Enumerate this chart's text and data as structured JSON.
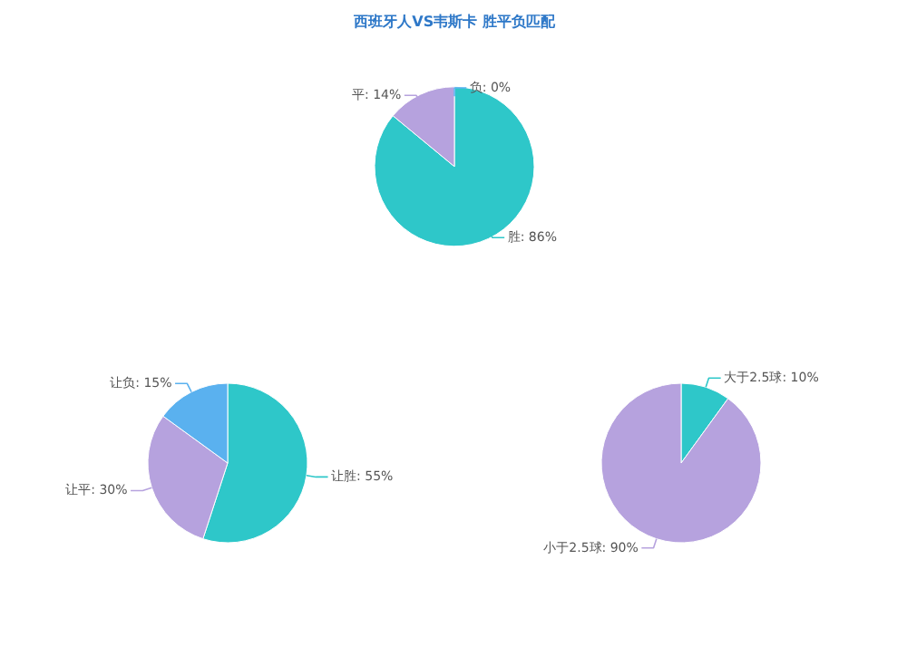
{
  "chart_data": [
    {
      "type": "pie",
      "title": "西班牙人VS韦斯卡 胜平负匹配",
      "categories": [
        "胜",
        "平",
        "负"
      ],
      "values": [
        86,
        14,
        0
      ],
      "colors": [
        "#2ec7c9",
        "#b6a2de",
        "#5ab1ef"
      ],
      "value_labels": [
        "86%",
        "14%",
        "0%"
      ]
    },
    {
      "type": "pie",
      "categories": [
        "让胜",
        "让平",
        "让负"
      ],
      "values": [
        55,
        30,
        15
      ],
      "colors": [
        "#2ec7c9",
        "#b6a2de",
        "#5ab1ef"
      ],
      "value_labels": [
        "55%",
        "30%",
        "15%"
      ]
    },
    {
      "type": "pie",
      "categories": [
        "大于2.5球",
        "小于2.5球"
      ],
      "values": [
        10,
        90
      ],
      "colors": [
        "#2ec7c9",
        "#b6a2de"
      ],
      "value_labels": [
        "10%",
        "90%"
      ]
    }
  ]
}
